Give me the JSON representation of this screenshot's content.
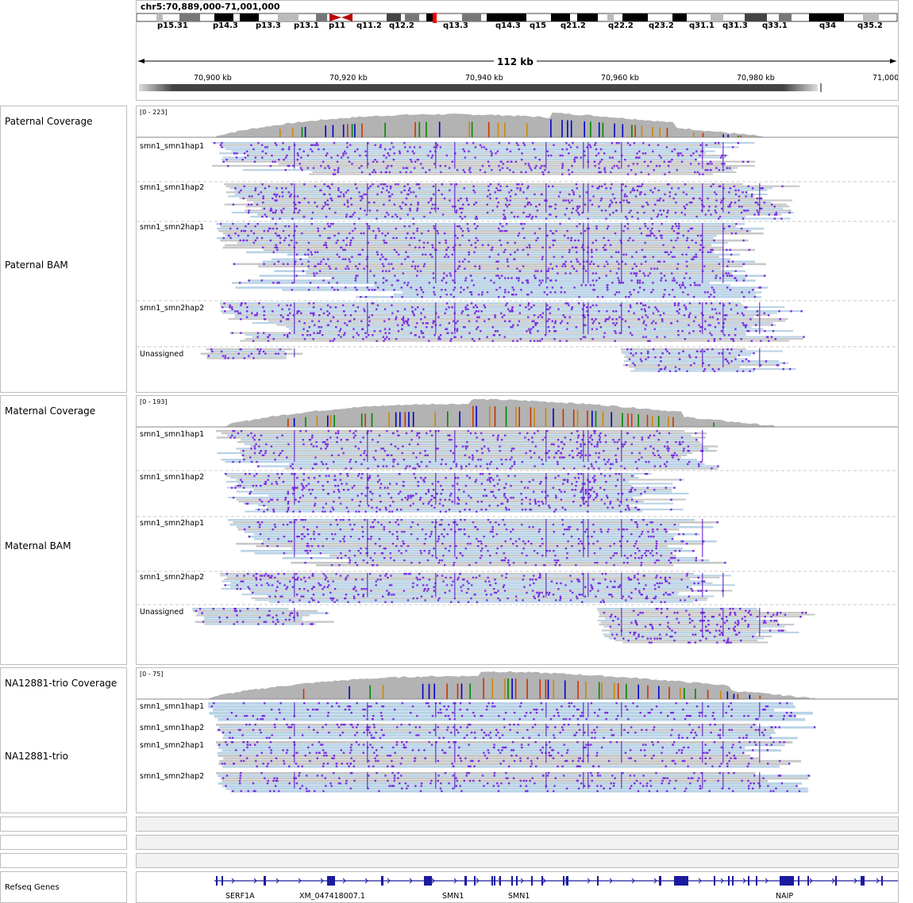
{
  "ruler": {
    "locus": "chr5:70,889,000-71,001,000",
    "span_label": "112 kb",
    "bands": [
      "p15.31",
      "p14.3",
      "p13.3",
      "p13.1",
      "p11",
      "q11.2",
      "q12.2",
      "q13.3",
      "q14.3",
      "q15",
      "q21.2",
      "q22.2",
      "q23.2",
      "q31.1",
      "q31.3",
      "q33.1",
      "q34",
      "q35.2"
    ],
    "ticks": [
      "70,900 kb",
      "70,920 kb",
      "70,940 kb",
      "70,960 kb",
      "70,980 kb",
      "71,000"
    ]
  },
  "tracks": {
    "paternal_coverage": {
      "name": "Paternal Coverage",
      "range": "[0 - 223]"
    },
    "paternal_bam": {
      "name": "Paternal BAM",
      "groups": [
        "smn1_smn1hap1",
        "smn1_smn1hap2",
        "smn1_smn2hap1",
        "smn1_smn2hap2",
        "Unassigned"
      ]
    },
    "maternal_coverage": {
      "name": "Maternal Coverage",
      "range": "[0 - 193]"
    },
    "maternal_bam": {
      "name": "Maternal BAM",
      "groups": [
        "smn1_smn1hap1",
        "smn1_smn1hap2",
        "smn1_smn2hap1",
        "smn1_smn2hap2",
        "Unassigned"
      ]
    },
    "trio_coverage": {
      "name": "NA12881-trio Coverage",
      "range": "[0 - 75]"
    },
    "trio_bam": {
      "name": "NA12881-trio",
      "groups": [
        "smn1_smn1hap1",
        "smn1_smn1hap2",
        "smn1_smn2hap1",
        "smn1_smn2hap2"
      ]
    },
    "refseq": {
      "name": "Refseq Genes",
      "genes": [
        "SERF1A",
        "XM_047418007.1",
        "SMN1",
        "SMN1",
        "NAIP"
      ]
    }
  },
  "colors": {
    "read_fill": "#c8c8c8",
    "read_blue": "#b9d3e6",
    "mismatch": "#7b2be2",
    "coverage": "#b3b3b3",
    "gene": "#1a1aa0"
  }
}
